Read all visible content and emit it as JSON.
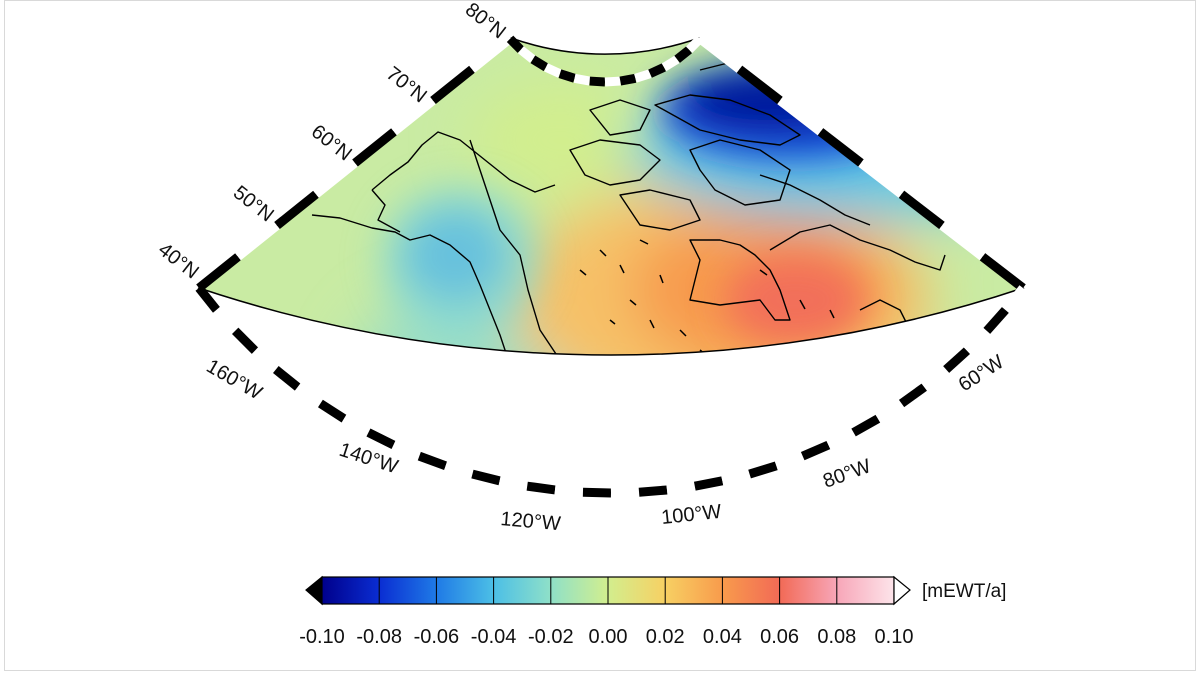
{
  "map": {
    "latitude_labels": [
      "80°N",
      "70°N",
      "60°N",
      "50°N",
      "40°N"
    ],
    "longitude_labels": [
      "160°W",
      "140°W",
      "120°W",
      "100°W",
      "80°W",
      "60°W"
    ]
  },
  "colorbar": {
    "unit": "[mEWT/a]",
    "ticks": [
      "-0.10",
      "-0.08",
      "-0.06",
      "-0.04",
      "-0.02",
      "0.00",
      "0.02",
      "0.04",
      "0.06",
      "0.08",
      "0.10"
    ],
    "colors": [
      "#00008b",
      "#0a2dd2",
      "#1f7ae6",
      "#4cbfe6",
      "#8fe0c8",
      "#d2ee8e",
      "#f7d063",
      "#f89b4c",
      "#f26a56",
      "#f7a6b8",
      "#fde4ea"
    ],
    "extend_min_color": "#000000",
    "extend_max_color": "#ffffff"
  }
}
